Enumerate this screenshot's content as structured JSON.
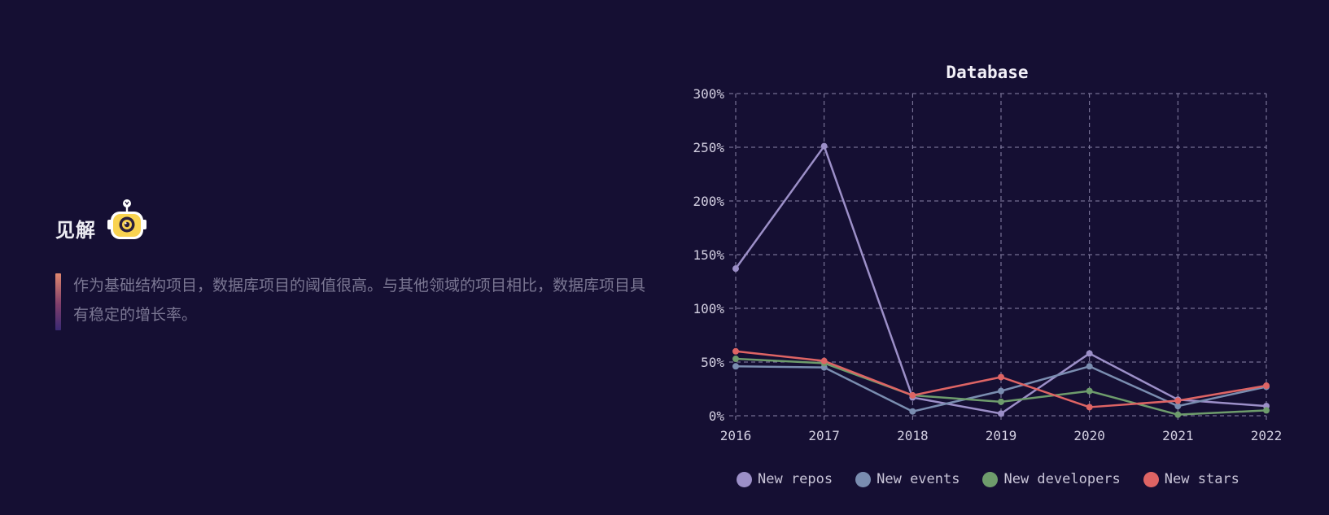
{
  "insight": {
    "title": "见解",
    "text": "作为基础结构项目，数据库项目的阈值很高。与其他领域的项目相比，数据库项目具有稳定的增长率。"
  },
  "chart_data": {
    "type": "line",
    "title": "Database",
    "categories": [
      "2016",
      "2017",
      "2018",
      "2019",
      "2020",
      "2021",
      "2022"
    ],
    "y_ticks": [
      "0%",
      "50%",
      "100%",
      "150%",
      "200%",
      "250%",
      "300%"
    ],
    "ylim": [
      0,
      300
    ],
    "grid": true,
    "legend_position": "bottom",
    "series": [
      {
        "name": "New repos",
        "color": "#9c8fc8",
        "values": [
          137,
          251,
          17,
          2,
          58,
          15,
          9
        ]
      },
      {
        "name": "New events",
        "color": "#7a8db0",
        "values": [
          46,
          45,
          4,
          23,
          46,
          9,
          27
        ]
      },
      {
        "name": "New developers",
        "color": "#6e9c6c",
        "values": [
          53,
          49,
          19,
          13,
          23,
          1,
          5
        ]
      },
      {
        "name": "New stars",
        "color": "#de6464",
        "values": [
          60,
          51,
          19,
          36,
          8,
          14,
          28
        ]
      }
    ]
  }
}
